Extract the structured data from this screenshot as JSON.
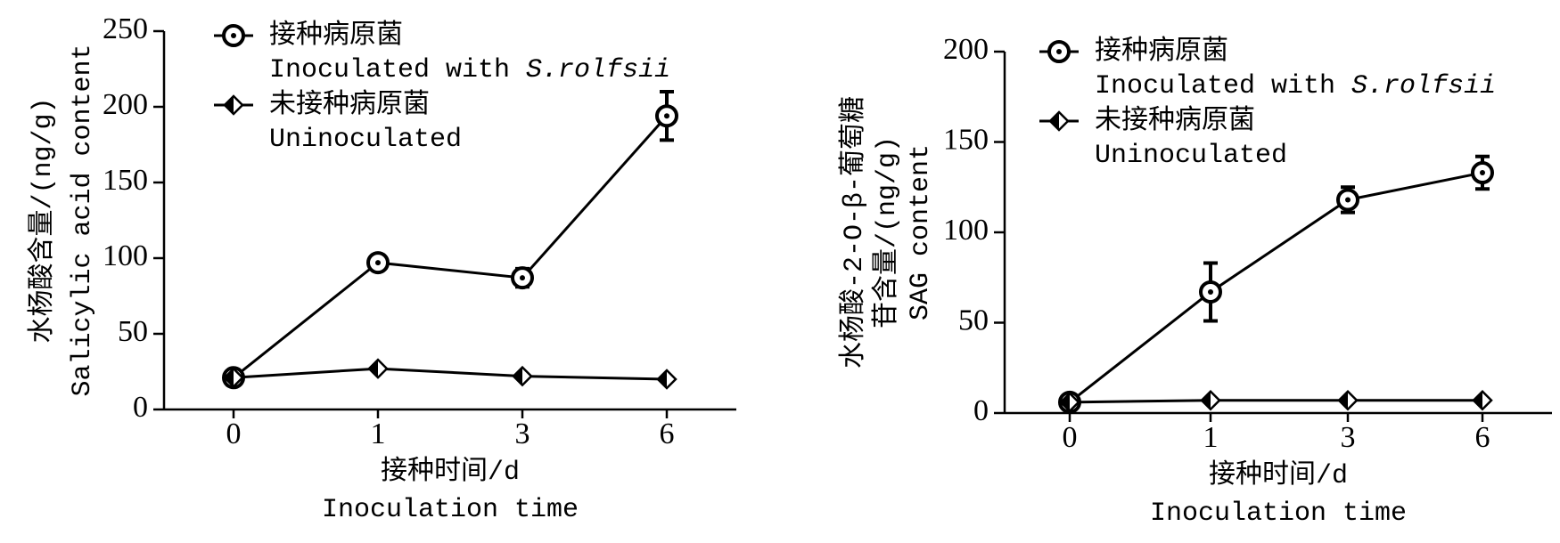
{
  "chart_data": [
    {
      "type": "line",
      "categories": [
        "0",
        "1",
        "3",
        "6"
      ],
      "y_label": [
        "水杨酸含量/(ng/g)",
        "Salicylic acid content"
      ],
      "x_label": [
        "接种时间/d",
        "Inoculation time"
      ],
      "ylim": [
        0,
        250
      ],
      "yticks": [
        0,
        50,
        100,
        150,
        200,
        250
      ],
      "series": [
        {
          "name": "接种病原菌",
          "name_en": [
            "Inoculated with",
            "S.rolfsii"
          ],
          "marker": "circle",
          "color": "#000000",
          "values": [
            21,
            97,
            87,
            194
          ],
          "errors": [
            3,
            2,
            6,
            16
          ]
        },
        {
          "name": "未接种病原菌",
          "name_en": [
            "Uninoculated"
          ],
          "marker": "diamond",
          "color": "#000000",
          "values": [
            21,
            27,
            22,
            20
          ]
        }
      ]
    },
    {
      "type": "line",
      "categories": [
        "0",
        "1",
        "3",
        "6"
      ],
      "y_label": [
        "水杨酸-2-O-β-葡萄糖",
        "苷含量/(ng/g)",
        "SAG content"
      ],
      "x_label": [
        "接种时间/d",
        "Inoculation time"
      ],
      "ylim": [
        0,
        200
      ],
      "yticks": [
        0,
        50,
        100,
        150,
        200
      ],
      "series": [
        {
          "name": "接种病原菌",
          "name_en": [
            "Inoculated with",
            "S.rolfsii"
          ],
          "marker": "circle",
          "color": "#000000",
          "values": [
            6,
            67,
            118,
            133
          ],
          "errors": [
            2,
            16,
            7,
            9
          ]
        },
        {
          "name": "未接种病原菌",
          "name_en": [
            "Uninoculated"
          ],
          "marker": "diamond",
          "color": "#000000",
          "values": [
            6,
            7,
            7,
            7
          ]
        }
      ]
    }
  ]
}
